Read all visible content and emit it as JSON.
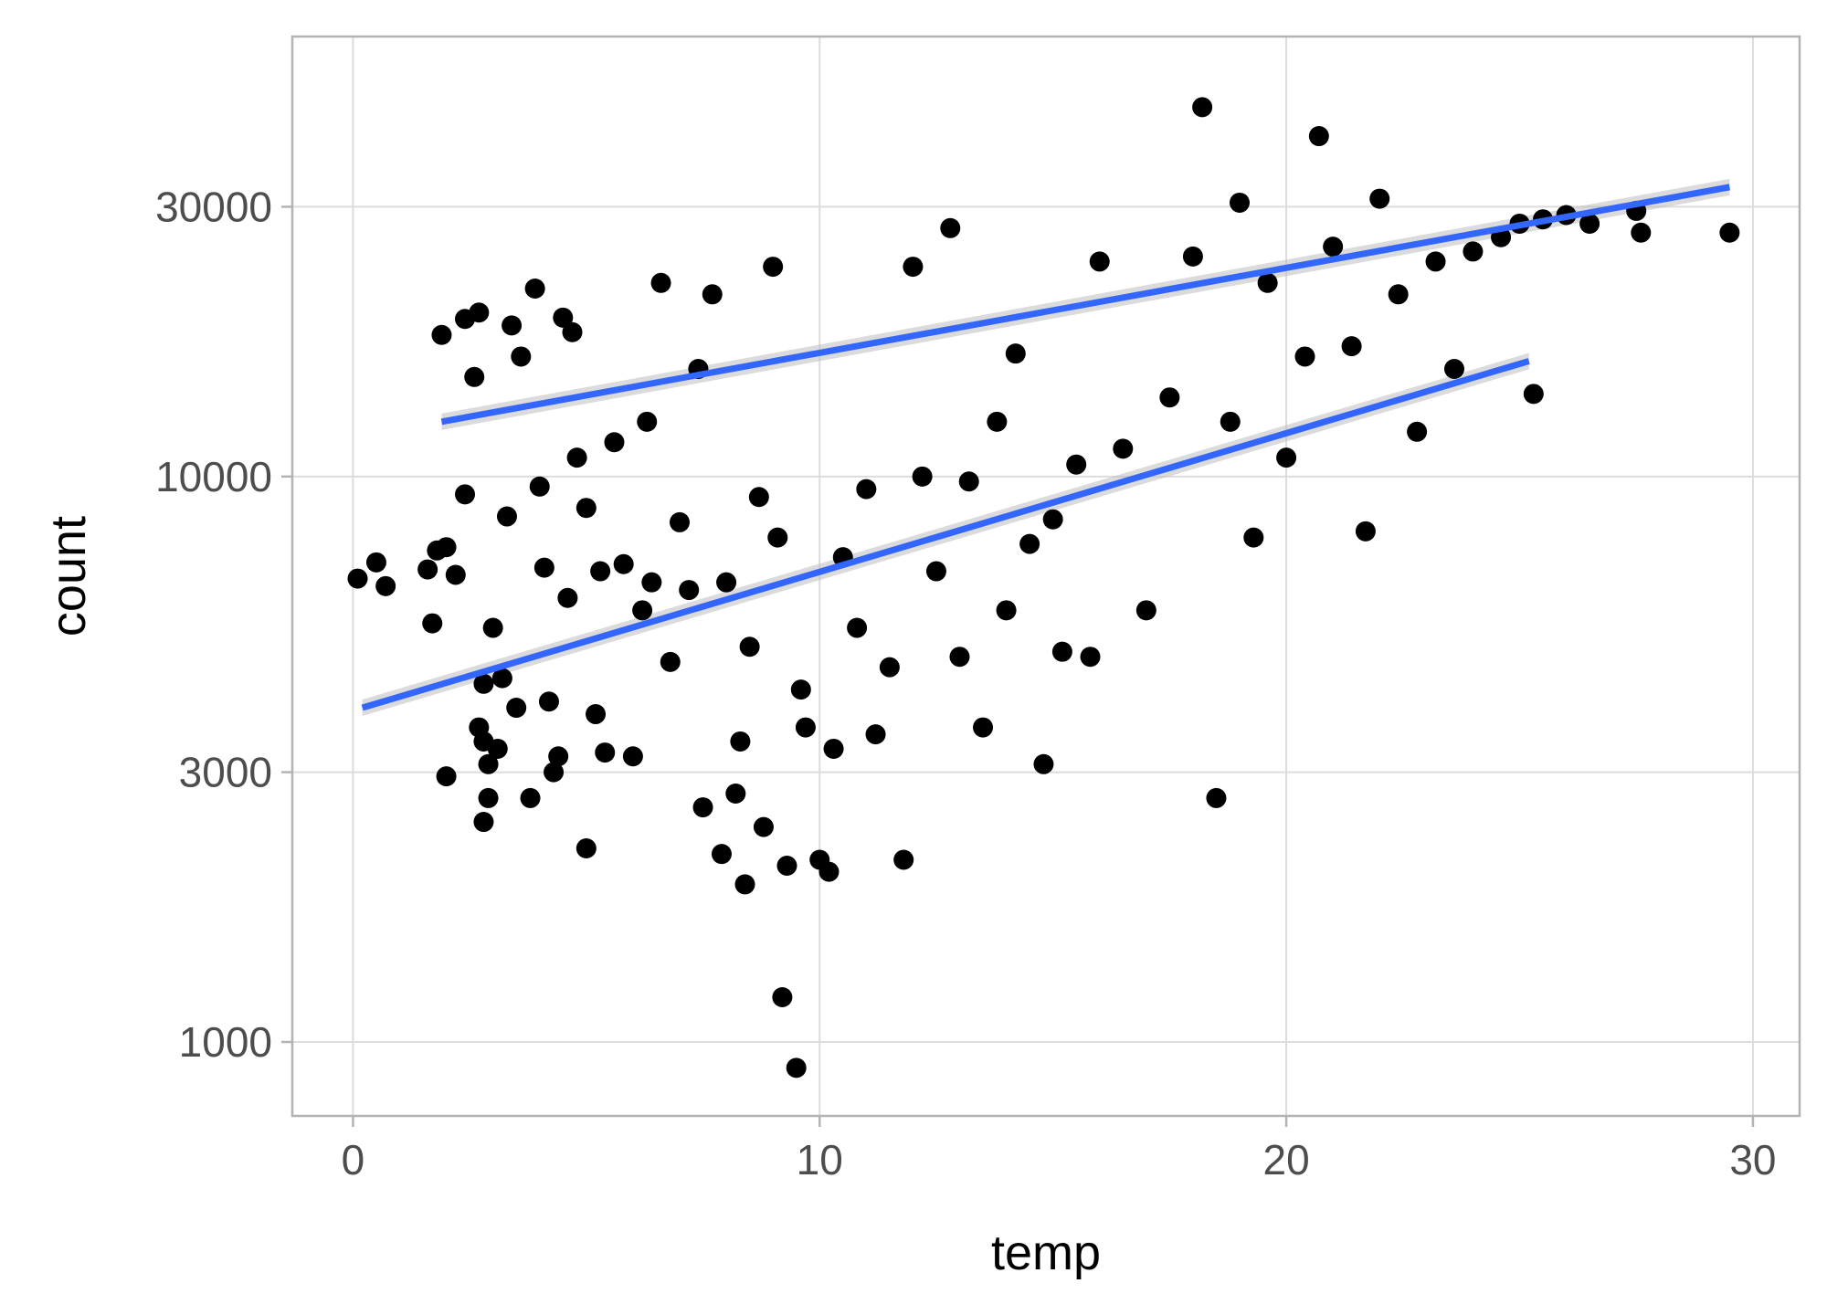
{
  "chart_data": {
    "type": "scatter",
    "title": "",
    "xlabel": "temp",
    "ylabel": "count",
    "x_scale": "linear",
    "y_scale": "log10",
    "xlim": [
      -1.3,
      31.0
    ],
    "ylim": [
      740,
      60000
    ],
    "x_ticks": [
      0,
      10,
      20,
      30
    ],
    "x_tick_labels": [
      "0",
      "10",
      "20",
      "30"
    ],
    "y_ticks": [
      1000,
      3000,
      10000,
      30000
    ],
    "y_tick_labels": [
      "1000",
      "3000",
      "10000",
      "30000"
    ],
    "grid": true,
    "legend": "none",
    "colors": {
      "points": "#000000",
      "fit_line": "#3366ff",
      "ribbon": "#bdbdbd",
      "grid": "#dcdcdc",
      "panel_border": "#b3b3b3"
    },
    "series": [
      {
        "kind": "points",
        "points": [
          [
            0.1,
            6600
          ],
          [
            0.5,
            7050
          ],
          [
            0.7,
            6400
          ],
          [
            1.6,
            6850
          ],
          [
            1.7,
            5500
          ],
          [
            1.8,
            7400
          ],
          [
            1.9,
            17800
          ],
          [
            2.0,
            2950
          ],
          [
            2.0,
            7500
          ],
          [
            2.2,
            6700
          ],
          [
            2.4,
            19000
          ],
          [
            2.4,
            9300
          ],
          [
            2.6,
            15000
          ],
          [
            2.7,
            19500
          ],
          [
            2.7,
            3600
          ],
          [
            2.8,
            3400
          ],
          [
            2.8,
            2450
          ],
          [
            2.8,
            4300
          ],
          [
            2.9,
            3100
          ],
          [
            2.9,
            2700
          ],
          [
            3.0,
            5400
          ],
          [
            3.1,
            3300
          ],
          [
            3.2,
            4400
          ],
          [
            3.3,
            8500
          ],
          [
            3.4,
            18500
          ],
          [
            3.5,
            3900
          ],
          [
            3.6,
            16300
          ],
          [
            3.8,
            2700
          ],
          [
            3.9,
            21500
          ],
          [
            4.0,
            9600
          ],
          [
            4.1,
            6900
          ],
          [
            4.2,
            4000
          ],
          [
            4.3,
            3000
          ],
          [
            4.4,
            3200
          ],
          [
            4.5,
            19100
          ],
          [
            4.6,
            6100
          ],
          [
            4.7,
            18000
          ],
          [
            4.8,
            10800
          ],
          [
            5.0,
            8800
          ],
          [
            5.0,
            2200
          ],
          [
            5.2,
            3800
          ],
          [
            5.3,
            6800
          ],
          [
            5.4,
            3250
          ],
          [
            5.6,
            11500
          ],
          [
            5.8,
            7000
          ],
          [
            6.0,
            3200
          ],
          [
            6.2,
            5800
          ],
          [
            6.3,
            12500
          ],
          [
            6.4,
            6500
          ],
          [
            6.6,
            22000
          ],
          [
            6.8,
            4700
          ],
          [
            7.0,
            8300
          ],
          [
            7.2,
            6300
          ],
          [
            7.4,
            15500
          ],
          [
            7.5,
            2600
          ],
          [
            7.7,
            21000
          ],
          [
            7.9,
            2150
          ],
          [
            8.0,
            6500
          ],
          [
            8.2,
            2750
          ],
          [
            8.3,
            3400
          ],
          [
            8.4,
            1900
          ],
          [
            8.5,
            5000
          ],
          [
            8.7,
            9200
          ],
          [
            8.8,
            2400
          ],
          [
            9.0,
            23500
          ],
          [
            9.1,
            7800
          ],
          [
            9.2,
            1200
          ],
          [
            9.3,
            2050
          ],
          [
            9.5,
            900
          ],
          [
            9.6,
            4200
          ],
          [
            9.7,
            3600
          ],
          [
            10.0,
            2100
          ],
          [
            10.2,
            2000
          ],
          [
            10.3,
            3300
          ],
          [
            10.5,
            7200
          ],
          [
            10.8,
            5400
          ],
          [
            11.0,
            9500
          ],
          [
            11.2,
            3500
          ],
          [
            11.5,
            4600
          ],
          [
            11.8,
            2100
          ],
          [
            12.0,
            23500
          ],
          [
            12.2,
            10000
          ],
          [
            12.5,
            6800
          ],
          [
            12.8,
            27500
          ],
          [
            13.0,
            4800
          ],
          [
            13.2,
            9800
          ],
          [
            13.5,
            3600
          ],
          [
            13.8,
            12500
          ],
          [
            14.0,
            5800
          ],
          [
            14.2,
            16500
          ],
          [
            14.5,
            7600
          ],
          [
            14.8,
            3100
          ],
          [
            15.0,
            8400
          ],
          [
            15.2,
            4900
          ],
          [
            15.5,
            10500
          ],
          [
            15.8,
            4800
          ],
          [
            16.0,
            24000
          ],
          [
            16.5,
            11200
          ],
          [
            17.0,
            5800
          ],
          [
            17.5,
            13800
          ],
          [
            18.0,
            24500
          ],
          [
            18.2,
            45000
          ],
          [
            18.5,
            2700
          ],
          [
            18.8,
            12500
          ],
          [
            19.0,
            30500
          ],
          [
            19.3,
            7800
          ],
          [
            19.6,
            22000
          ],
          [
            20.0,
            10800
          ],
          [
            20.4,
            16300
          ],
          [
            20.7,
            40000
          ],
          [
            21.0,
            25500
          ],
          [
            21.4,
            17000
          ],
          [
            21.7,
            8000
          ],
          [
            22.0,
            31000
          ],
          [
            22.4,
            21000
          ],
          [
            22.8,
            12000
          ],
          [
            23.2,
            24000
          ],
          [
            23.6,
            15500
          ],
          [
            24.0,
            25000
          ],
          [
            24.6,
            26500
          ],
          [
            25.0,
            28000
          ],
          [
            25.3,
            14000
          ],
          [
            25.5,
            28500
          ],
          [
            26.0,
            29000
          ],
          [
            26.5,
            28000
          ],
          [
            27.5,
            29500
          ],
          [
            27.6,
            27000
          ],
          [
            29.5,
            27000
          ]
        ]
      },
      {
        "kind": "fit",
        "name": "",
        "x": [
          1.9,
          29.5
        ],
        "y": [
          12500,
          32500
        ]
      },
      {
        "kind": "fit",
        "name": "",
        "x": [
          0.2,
          25.2
        ],
        "y": [
          3900,
          16000
        ]
      }
    ]
  }
}
